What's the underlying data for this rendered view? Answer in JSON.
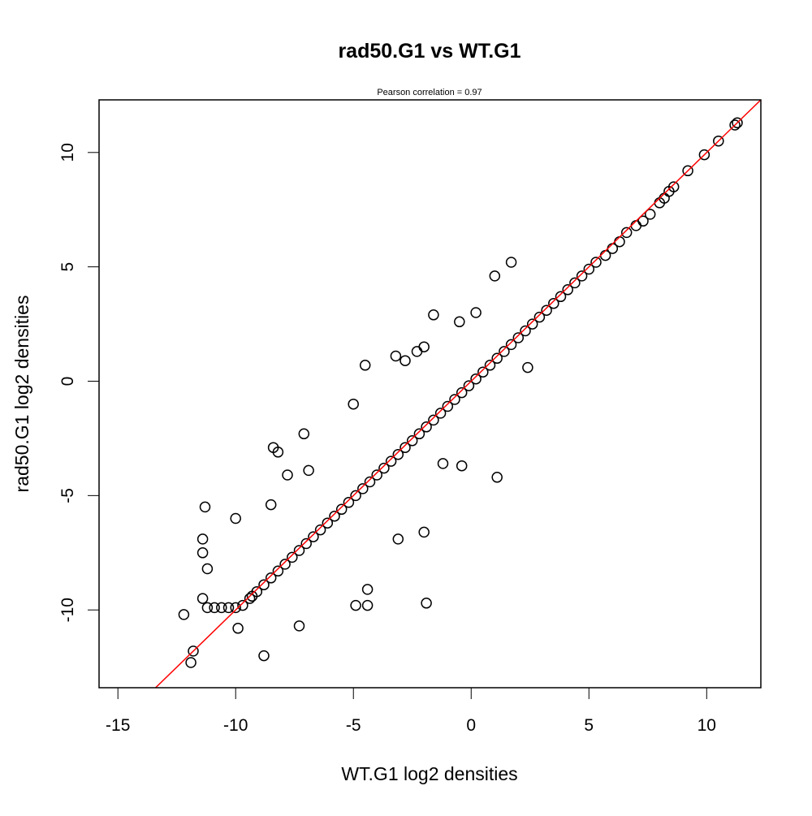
{
  "chart_data": {
    "type": "scatter",
    "title": "rad50.G1 vs WT.G1",
    "subtitle": "Pearson correlation =  0.97",
    "xlabel": "WT.G1 log2 densities",
    "ylabel": "rad50.G1 log2 densities",
    "xlim": [
      -15.8,
      12.3
    ],
    "ylim": [
      -13.4,
      12.3
    ],
    "xticks": [
      -15,
      -10,
      -5,
      0,
      5,
      10
    ],
    "yticks": [
      -10,
      -5,
      0,
      5,
      10
    ],
    "xtick_labels": [
      "-15",
      "-10",
      "-5",
      "0",
      "5",
      "10"
    ],
    "ytick_labels": [
      "-10",
      "-5",
      "0",
      "5",
      "10"
    ],
    "grid": false,
    "legend": "none",
    "colors": {
      "points": "#000000",
      "fit_line": "#ff0000"
    },
    "fit_line": {
      "slope": 1.0,
      "intercept": 0.0
    },
    "series": [
      {
        "marker": "open-circle",
        "x": [
          11.3,
          11.2,
          10.5,
          9.9,
          9.2,
          8.6,
          8.4,
          8.2,
          8.0,
          7.6,
          7.3,
          7.0,
          6.6,
          6.3,
          6.0,
          5.7,
          5.3,
          5.0,
          4.7,
          4.4,
          4.1,
          3.8,
          3.5,
          3.2,
          2.9,
          2.6,
          2.3,
          2.0,
          1.7,
          1.4,
          1.1,
          0.8,
          0.5,
          0.2,
          -0.1,
          -0.4,
          -0.7,
          -1.0,
          -1.3,
          -1.6,
          -1.9,
          -2.2,
          -2.5,
          -2.8,
          -3.1,
          -3.4,
          -3.7,
          -4.0,
          -4.3,
          -4.6,
          -4.9,
          -5.2,
          -5.5,
          -5.8,
          -6.1,
          -6.4,
          -6.7,
          -7.0,
          -7.3,
          -7.6,
          -7.9,
          -8.2,
          -8.5,
          -8.8,
          -9.1,
          -9.4,
          -9.7,
          -10.0,
          -10.3,
          -10.6,
          -10.9,
          -11.2,
          -11.4,
          1.7,
          1.0,
          0.2,
          -0.5,
          -1.6,
          -2.0,
          -2.3,
          -2.8,
          -3.2,
          -4.5,
          -5.0,
          -7.1,
          -8.4,
          -8.2,
          2.4,
          1.1,
          -0.4,
          -1.2,
          -2.0,
          -3.1,
          -1.9,
          -4.4,
          -4.4,
          -4.9,
          -7.3,
          -9.9,
          -11.8,
          -11.9,
          -12.2,
          -11.3,
          -8.8,
          -9.3,
          -10.0,
          -8.5,
          -7.8,
          -6.9,
          -11.4,
          -11.4,
          -11.2
        ],
        "y": [
          11.3,
          11.2,
          10.5,
          9.9,
          9.2,
          8.5,
          8.3,
          8.0,
          7.8,
          7.3,
          7.0,
          6.8,
          6.5,
          6.1,
          5.8,
          5.5,
          5.2,
          4.9,
          4.6,
          4.3,
          4.0,
          3.7,
          3.4,
          3.1,
          2.8,
          2.5,
          2.2,
          1.9,
          1.6,
          1.3,
          1.0,
          0.7,
          0.4,
          0.1,
          -0.2,
          -0.5,
          -0.8,
          -1.1,
          -1.4,
          -1.7,
          -2.0,
          -2.3,
          -2.6,
          -2.9,
          -3.2,
          -3.5,
          -3.8,
          -4.1,
          -4.4,
          -4.7,
          -5.0,
          -5.3,
          -5.6,
          -5.9,
          -6.2,
          -6.5,
          -6.8,
          -7.1,
          -7.4,
          -7.7,
          -8.0,
          -8.3,
          -8.6,
          -8.9,
          -9.2,
          -9.5,
          -9.8,
          -9.9,
          -9.9,
          -9.9,
          -9.9,
          -9.9,
          -9.5,
          5.2,
          4.6,
          3.0,
          2.6,
          2.9,
          1.5,
          1.3,
          0.9,
          1.1,
          0.7,
          -1.0,
          -2.3,
          -2.9,
          -3.1,
          0.6,
          -4.2,
          -3.7,
          -3.6,
          -6.6,
          -6.9,
          -9.7,
          -9.1,
          -9.8,
          -9.8,
          -10.7,
          -10.8,
          -11.8,
          -12.3,
          -10.2,
          -5.5,
          -12.0,
          -9.4,
          -6.0,
          -5.4,
          -4.1,
          -3.9,
          -6.9,
          -7.5,
          -8.2
        ]
      }
    ]
  }
}
